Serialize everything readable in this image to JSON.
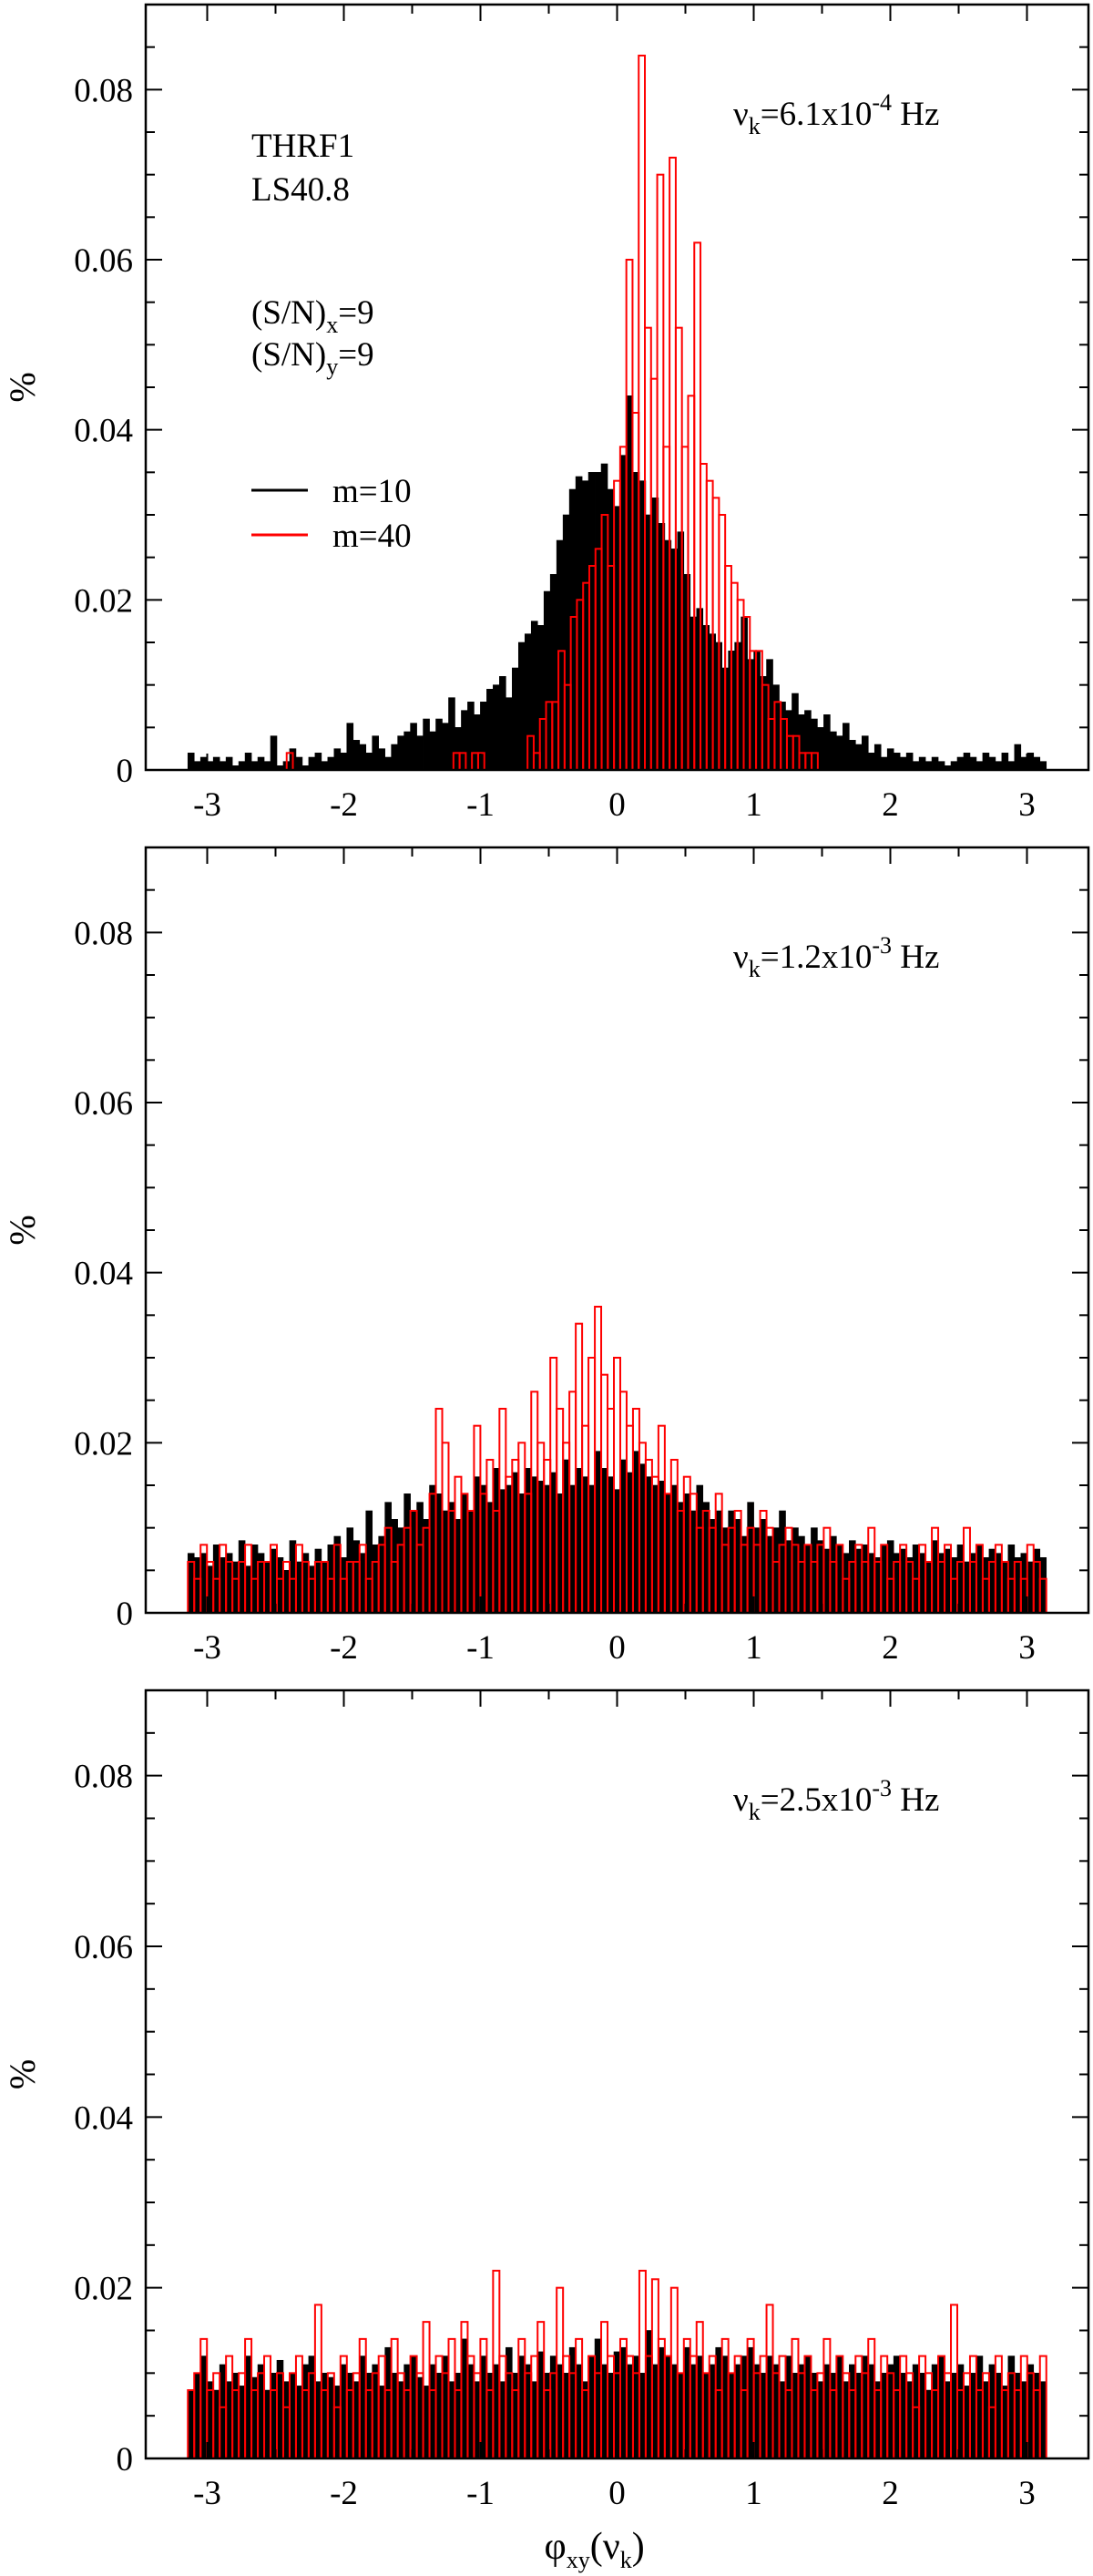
{
  "figure": {
    "xlabel_parts": {
      "phi": "φ",
      "sub": "xy",
      "rest_open": "(ν",
      "rest_sub": "k",
      "rest_close": ")"
    },
    "ylabel": "%",
    "colors": {
      "m10": "#000000",
      "m40": "#ff0000"
    }
  },
  "chart_data": [
    {
      "type": "bar",
      "panel": "top",
      "xlim": [
        -3.45,
        3.45
      ],
      "ylim": [
        0,
        0.09
      ],
      "xticks": [
        "-3",
        "-2",
        "-1",
        "0",
        "1",
        "2",
        "3"
      ],
      "yticks": [
        "0",
        "0.02",
        "0.04",
        "0.06",
        "0.08"
      ],
      "ylabel": "%",
      "xlabel": "",
      "frequency_label": {
        "prefix": "ν",
        "sub": "k",
        "mid": "=6.1x10",
        "sup": "-4",
        "suffix": " Hz"
      },
      "annotations": [
        "THRF1",
        "LS40.8"
      ],
      "sn_labels": [
        {
          "pre": "(S/N)",
          "sub": "x",
          "post": "=9"
        },
        {
          "pre": "(S/N)",
          "sub": "y",
          "post": "=9"
        }
      ],
      "legend": [
        {
          "label": "m=10",
          "color": "#000000"
        },
        {
          "label": "m=40",
          "color": "#ff0000"
        }
      ],
      "series": [
        {
          "name": "m=10",
          "style": "filled",
          "color": "#000000",
          "bin_start": -3.14159,
          "bin_end": 3.14159,
          "values": [
            0.002,
            0.001,
            0.0015,
            0.001,
            0.0015,
            0.001,
            0.0015,
            0.0005,
            0.001,
            0.002,
            0.001,
            0.0015,
            0.001,
            0.004,
            0.0005,
            0.001,
            0.0025,
            0.0015,
            0.0005,
            0.0015,
            0.002,
            0.001,
            0.0015,
            0.0025,
            0.002,
            0.0055,
            0.0035,
            0.003,
            0.002,
            0.004,
            0.0025,
            0.0015,
            0.003,
            0.004,
            0.0045,
            0.0055,
            0.004,
            0.006,
            0.0045,
            0.006,
            0.0055,
            0.0085,
            0.005,
            0.007,
            0.008,
            0.0065,
            0.008,
            0.0095,
            0.01,
            0.011,
            0.0085,
            0.012,
            0.015,
            0.016,
            0.0175,
            0.017,
            0.021,
            0.023,
            0.027,
            0.03,
            0.033,
            0.0345,
            0.034,
            0.035,
            0.035,
            0.036,
            0.033,
            0.031,
            0.037,
            0.044,
            0.035,
            0.034,
            0.03,
            0.032,
            0.029,
            0.027,
            0.026,
            0.028,
            0.023,
            0.018,
            0.019,
            0.017,
            0.016,
            0.015,
            0.012,
            0.014,
            0.015,
            0.018,
            0.013,
            0.014,
            0.011,
            0.013,
            0.01,
            0.008,
            0.007,
            0.009,
            0.0065,
            0.007,
            0.006,
            0.005,
            0.0065,
            0.0045,
            0.004,
            0.0055,
            0.0035,
            0.003,
            0.004,
            0.002,
            0.003,
            0.0015,
            0.0025,
            0.002,
            0.0015,
            0.002,
            0.001,
            0.0015,
            0.001,
            0.0015,
            0.001,
            0.0005,
            0.001,
            0.0015,
            0.002,
            0.0015,
            0.001,
            0.002,
            0.0015,
            0.001,
            0.002,
            0.001,
            0.003,
            0.0015,
            0.002,
            0.0015,
            0.001
          ]
        },
        {
          "name": "m=40",
          "style": "outline",
          "color": "#ff0000",
          "bin_start": -3.14159,
          "bin_end": 3.14159,
          "values": [
            0,
            0,
            0,
            0,
            0,
            0,
            0,
            0,
            0,
            0,
            0,
            0,
            0,
            0,
            0,
            0,
            0.002,
            0,
            0,
            0,
            0,
            0,
            0,
            0,
            0,
            0,
            0,
            0,
            0,
            0,
            0,
            0,
            0,
            0,
            0,
            0,
            0,
            0,
            0,
            0,
            0,
            0,
            0,
            0.002,
            0.002,
            0,
            0.002,
            0.002,
            0,
            0,
            0,
            0,
            0,
            0,
            0,
            0.004,
            0.002,
            0.006,
            0.008,
            0.008,
            0.014,
            0.01,
            0.018,
            0.02,
            0.022,
            0.024,
            0.026,
            0.03,
            0.024,
            0.034,
            0.038,
            0.06,
            0.042,
            0.084,
            0.052,
            0.046,
            0.07,
            0.038,
            0.072,
            0.052,
            0.038,
            0.044,
            0.062,
            0.036,
            0.034,
            0.032,
            0.03,
            0.024,
            0.022,
            0.02,
            0.018,
            0.014,
            0.014,
            0.01,
            0.006,
            0.008,
            0.006,
            0.004,
            0.004,
            0.002,
            0.002,
            0.002,
            0,
            0,
            0,
            0,
            0,
            0,
            0,
            0,
            0,
            0,
            0,
            0,
            0,
            0,
            0,
            0,
            0,
            0,
            0,
            0,
            0,
            0,
            0,
            0,
            0,
            0,
            0,
            0,
            0,
            0,
            0,
            0,
            0,
            0,
            0,
            0,
            0
          ]
        }
      ]
    },
    {
      "type": "bar",
      "panel": "middle",
      "xlim": [
        -3.45,
        3.45
      ],
      "ylim": [
        0,
        0.09
      ],
      "xticks": [
        "-3",
        "-2",
        "-1",
        "0",
        "1",
        "2",
        "3"
      ],
      "yticks": [
        "0",
        "0.02",
        "0.04",
        "0.06",
        "0.08"
      ],
      "ylabel": "%",
      "xlabel": "",
      "frequency_label": {
        "prefix": "ν",
        "sub": "k",
        "mid": "=1.2x10",
        "sup": "-3",
        "suffix": " Hz"
      },
      "series": [
        {
          "name": "m=10",
          "style": "filled",
          "color": "#000000",
          "bin_start": -3.14159,
          "bin_end": 3.14159,
          "values": [
            0.007,
            0.0065,
            0.007,
            0.0055,
            0.008,
            0.0065,
            0.007,
            0.006,
            0.0085,
            0.0055,
            0.008,
            0.007,
            0.006,
            0.0075,
            0.0065,
            0.005,
            0.0085,
            0.006,
            0.007,
            0.0055,
            0.0075,
            0.006,
            0.008,
            0.009,
            0.0065,
            0.01,
            0.0085,
            0.007,
            0.012,
            0.008,
            0.009,
            0.013,
            0.011,
            0.01,
            0.014,
            0.012,
            0.013,
            0.011,
            0.015,
            0.014,
            0.012,
            0.013,
            0.011,
            0.014,
            0.012,
            0.016,
            0.015,
            0.013,
            0.017,
            0.0145,
            0.015,
            0.0165,
            0.014,
            0.017,
            0.016,
            0.0155,
            0.015,
            0.0165,
            0.014,
            0.018,
            0.015,
            0.017,
            0.016,
            0.015,
            0.019,
            0.017,
            0.016,
            0.0145,
            0.018,
            0.0165,
            0.019,
            0.0175,
            0.016,
            0.015,
            0.0155,
            0.014,
            0.015,
            0.013,
            0.014,
            0.012,
            0.015,
            0.013,
            0.011,
            0.012,
            0.01,
            0.012,
            0.011,
            0.009,
            0.013,
            0.01,
            0.011,
            0.009,
            0.01,
            0.012,
            0.0085,
            0.01,
            0.009,
            0.008,
            0.01,
            0.0085,
            0.0075,
            0.009,
            0.008,
            0.007,
            0.0085,
            0.0075,
            0.008,
            0.007,
            0.0065,
            0.008,
            0.0085,
            0.007,
            0.0075,
            0.0065,
            0.008,
            0.007,
            0.006,
            0.0085,
            0.007,
            0.0075,
            0.0065,
            0.008,
            0.006,
            0.007,
            0.008,
            0.0065,
            0.0075,
            0.007,
            0.006,
            0.008,
            0.0065,
            0.007,
            0.006,
            0.0075,
            0.0065
          ]
        },
        {
          "name": "m=40",
          "style": "outline",
          "color": "#ff0000",
          "bin_start": -3.14159,
          "bin_end": 3.14159,
          "values": [
            0.006,
            0.004,
            0.008,
            0.006,
            0.004,
            0.008,
            0.006,
            0.004,
            0.006,
            0.008,
            0.004,
            0.006,
            0.006,
            0.008,
            0.004,
            0.006,
            0.004,
            0.008,
            0.006,
            0.004,
            0.006,
            0.006,
            0.004,
            0.008,
            0.004,
            0.006,
            0.006,
            0.008,
            0.004,
            0.006,
            0.008,
            0.01,
            0.006,
            0.008,
            0.01,
            0.012,
            0.008,
            0.01,
            0.014,
            0.024,
            0.02,
            0.012,
            0.016,
            0.014,
            0.012,
            0.022,
            0.014,
            0.018,
            0.012,
            0.024,
            0.016,
            0.018,
            0.02,
            0.014,
            0.026,
            0.02,
            0.018,
            0.03,
            0.024,
            0.02,
            0.026,
            0.034,
            0.022,
            0.03,
            0.036,
            0.028,
            0.024,
            0.03,
            0.026,
            0.022,
            0.024,
            0.02,
            0.018,
            0.016,
            0.022,
            0.014,
            0.018,
            0.012,
            0.016,
            0.014,
            0.01,
            0.012,
            0.01,
            0.014,
            0.008,
            0.01,
            0.012,
            0.008,
            0.01,
            0.008,
            0.012,
            0.01,
            0.006,
            0.008,
            0.01,
            0.008,
            0.006,
            0.008,
            0.006,
            0.008,
            0.01,
            0.006,
            0.008,
            0.004,
            0.006,
            0.008,
            0.006,
            0.01,
            0.006,
            0.008,
            0.004,
            0.006,
            0.008,
            0.006,
            0.004,
            0.008,
            0.006,
            0.01,
            0.006,
            0.008,
            0.004,
            0.006,
            0.01,
            0.006,
            0.008,
            0.004,
            0.006,
            0.008,
            0.006,
            0.004,
            0.006,
            0.004,
            0.008,
            0.006,
            0.004
          ]
        }
      ]
    },
    {
      "type": "bar",
      "panel": "bottom",
      "xlim": [
        -3.45,
        3.45
      ],
      "ylim": [
        0,
        0.09
      ],
      "xticks": [
        "-3",
        "-2",
        "-1",
        "0",
        "1",
        "2",
        "3"
      ],
      "yticks": [
        "0",
        "0.02",
        "0.04",
        "0.06",
        "0.08"
      ],
      "ylabel": "%",
      "xlabel": "φxy(νk)",
      "frequency_label": {
        "prefix": "ν",
        "sub": "k",
        "mid": "=2.5x10",
        "sup": "-3",
        "suffix": " Hz"
      },
      "series": [
        {
          "name": "m=10",
          "style": "filled",
          "color": "#000000",
          "bin_start": -3.14159,
          "bin_end": 3.14159,
          "values": [
            0.008,
            0.01,
            0.012,
            0.009,
            0.008,
            0.011,
            0.009,
            0.01,
            0.0085,
            0.012,
            0.0095,
            0.011,
            0.008,
            0.01,
            0.0115,
            0.009,
            0.01,
            0.0085,
            0.011,
            0.012,
            0.009,
            0.01,
            0.0095,
            0.0085,
            0.011,
            0.01,
            0.009,
            0.012,
            0.01,
            0.011,
            0.0085,
            0.013,
            0.01,
            0.009,
            0.011,
            0.012,
            0.0095,
            0.0085,
            0.011,
            0.01,
            0.012,
            0.009,
            0.01,
            0.014,
            0.011,
            0.009,
            0.012,
            0.01,
            0.011,
            0.009,
            0.013,
            0.01,
            0.012,
            0.011,
            0.009,
            0.0125,
            0.01,
            0.012,
            0.011,
            0.01,
            0.013,
            0.011,
            0.009,
            0.012,
            0.014,
            0.011,
            0.01,
            0.0125,
            0.013,
            0.011,
            0.012,
            0.01,
            0.015,
            0.011,
            0.013,
            0.012,
            0.011,
            0.01,
            0.013,
            0.011,
            0.012,
            0.01,
            0.011,
            0.013,
            0.012,
            0.01,
            0.011,
            0.012,
            0.013,
            0.011,
            0.01,
            0.012,
            0.011,
            0.009,
            0.012,
            0.01,
            0.011,
            0.012,
            0.01,
            0.009,
            0.011,
            0.01,
            0.012,
            0.009,
            0.011,
            0.01,
            0.012,
            0.011,
            0.009,
            0.01,
            0.011,
            0.012,
            0.01,
            0.009,
            0.011,
            0.01,
            0.008,
            0.011,
            0.012,
            0.009,
            0.01,
            0.011,
            0.0085,
            0.01,
            0.012,
            0.009,
            0.011,
            0.01,
            0.0085,
            0.012,
            0.01,
            0.009,
            0.011,
            0.01,
            0.009
          ]
        },
        {
          "name": "m=40",
          "style": "outline",
          "color": "#ff0000",
          "bin_start": -3.14159,
          "bin_end": 3.14159,
          "values": [
            0.008,
            0.01,
            0.014,
            0.008,
            0.01,
            0.006,
            0.012,
            0.008,
            0.01,
            0.014,
            0.008,
            0.01,
            0.012,
            0.008,
            0.01,
            0.006,
            0.01,
            0.012,
            0.008,
            0.01,
            0.018,
            0.008,
            0.01,
            0.006,
            0.012,
            0.008,
            0.01,
            0.014,
            0.008,
            0.01,
            0.012,
            0.008,
            0.014,
            0.01,
            0.008,
            0.012,
            0.01,
            0.016,
            0.008,
            0.012,
            0.01,
            0.014,
            0.008,
            0.016,
            0.012,
            0.01,
            0.014,
            0.008,
            0.022,
            0.012,
            0.01,
            0.008,
            0.014,
            0.01,
            0.012,
            0.016,
            0.008,
            0.01,
            0.02,
            0.012,
            0.01,
            0.014,
            0.008,
            0.012,
            0.01,
            0.016,
            0.012,
            0.01,
            0.014,
            0.012,
            0.01,
            0.022,
            0.012,
            0.021,
            0.014,
            0.012,
            0.02,
            0.01,
            0.014,
            0.012,
            0.016,
            0.01,
            0.012,
            0.008,
            0.014,
            0.01,
            0.012,
            0.008,
            0.014,
            0.01,
            0.012,
            0.018,
            0.01,
            0.012,
            0.008,
            0.014,
            0.01,
            0.012,
            0.008,
            0.01,
            0.014,
            0.008,
            0.012,
            0.01,
            0.008,
            0.012,
            0.01,
            0.014,
            0.008,
            0.012,
            0.01,
            0.008,
            0.012,
            0.01,
            0.006,
            0.012,
            0.01,
            0.008,
            0.012,
            0.01,
            0.018,
            0.008,
            0.01,
            0.012,
            0.008,
            0.01,
            0.006,
            0.012,
            0.008,
            0.01,
            0.008,
            0.012,
            0.01,
            0.008,
            0.012
          ]
        }
      ]
    }
  ]
}
